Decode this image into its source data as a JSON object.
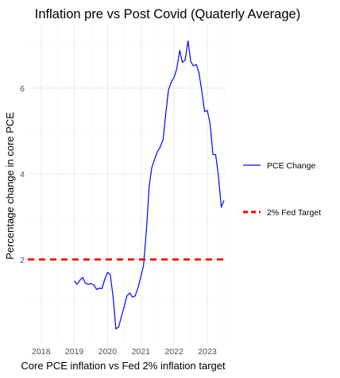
{
  "chart_data": {
    "type": "line",
    "title": "Inflation pre vs Post Covid  (Quaterly Average)",
    "xlabel": "Core PCE inflation vs Fed 2% inflation target",
    "ylabel": "Percentage change in core PCE",
    "x_ticks": [
      2018,
      2019,
      2020,
      2021,
      2022,
      2023
    ],
    "y_ticks": [
      2,
      4,
      6
    ],
    "xlim": [
      2017.6,
      2023.55
    ],
    "ylim": [
      0.05,
      7.5
    ],
    "grid": true,
    "legend_position": "right",
    "colors": {
      "series": "#0000ff",
      "reference": "#ff0000"
    },
    "series": [
      {
        "name": "PCE Change",
        "color": "#0000ff",
        "style": "solid",
        "x": [
          2019.0,
          2019.08,
          2019.17,
          2019.25,
          2019.33,
          2019.42,
          2019.5,
          2019.58,
          2019.67,
          2019.75,
          2019.83,
          2019.92,
          2020.0,
          2020.08,
          2020.17,
          2020.25,
          2020.33,
          2020.42,
          2020.5,
          2020.58,
          2020.67,
          2020.75,
          2020.83,
          2020.92,
          2021.0,
          2021.08,
          2021.17,
          2021.25,
          2021.33,
          2021.42,
          2021.5,
          2021.58,
          2021.67,
          2021.75,
          2021.83,
          2021.92,
          2022.0,
          2022.08,
          2022.17,
          2022.25,
          2022.33,
          2022.42,
          2022.5,
          2022.58,
          2022.67,
          2022.75,
          2022.83,
          2022.92,
          2023.0,
          2023.08,
          2023.17,
          2023.25,
          2023.33,
          2023.42,
          2023.5
        ],
        "values": [
          1.5,
          1.42,
          1.52,
          1.58,
          1.45,
          1.42,
          1.44,
          1.41,
          1.3,
          1.33,
          1.32,
          1.55,
          1.7,
          1.65,
          1.1,
          0.38,
          0.42,
          0.68,
          0.9,
          1.15,
          1.22,
          1.12,
          1.15,
          1.35,
          1.6,
          1.85,
          2.7,
          3.7,
          4.15,
          4.35,
          4.52,
          4.62,
          4.8,
          5.4,
          5.95,
          6.15,
          6.25,
          6.45,
          6.88,
          6.6,
          6.65,
          7.1,
          6.62,
          6.52,
          6.55,
          6.35,
          5.95,
          5.45,
          5.48,
          5.18,
          4.45,
          4.45,
          3.98,
          3.22,
          3.38
        ]
      },
      {
        "name": "2% Fed Target",
        "color": "#ff0000",
        "style": "dashed",
        "x": [
          2017.6,
          2023.55
        ],
        "values": [
          2,
          2
        ]
      }
    ]
  }
}
